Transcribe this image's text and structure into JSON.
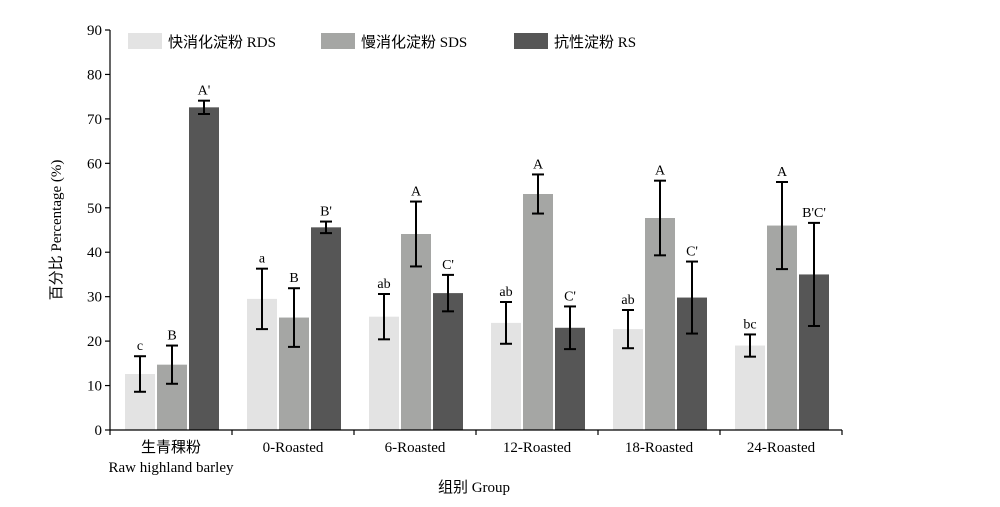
{
  "chart_data": {
    "type": "bar",
    "xlabel": "组别 Group",
    "ylabel": "百分比 Percentage (%)",
    "ylim": [
      0,
      90
    ],
    "yticks": [
      "0",
      "10",
      "20",
      "30",
      "40",
      "50",
      "60",
      "70",
      "80",
      "90"
    ],
    "categories": [
      [
        "生青稞粉",
        "Raw highland barley"
      ],
      [
        "0-Roasted"
      ],
      [
        "6-Roasted"
      ],
      [
        "12-Roasted"
      ],
      [
        "18-Roasted"
      ],
      [
        "24-Roasted"
      ]
    ],
    "legend_position": "top-left",
    "grid": false,
    "series": [
      {
        "name": "快消化淀粉 RDS",
        "color": "#e3e3e3",
        "values": [
          12.6,
          29.5,
          25.5,
          24.1,
          22.7,
          19.0
        ],
        "errors": [
          4.0,
          6.8,
          5.1,
          4.7,
          4.3,
          2.5
        ],
        "labels": [
          "c",
          "a",
          "ab",
          "ab",
          "ab",
          "bc"
        ]
      },
      {
        "name": "慢消化淀粉 SDS",
        "color": "#a5a6a4",
        "values": [
          14.7,
          25.3,
          44.1,
          53.1,
          47.7,
          46.0
        ],
        "errors": [
          4.3,
          6.6,
          7.3,
          4.4,
          8.4,
          9.8
        ],
        "labels": [
          "B",
          "B",
          "A",
          "A",
          "A",
          "A"
        ]
      },
      {
        "name": "抗性淀粉 RS",
        "color": "#565656",
        "values": [
          72.6,
          45.6,
          30.8,
          23.0,
          29.8,
          35.0
        ],
        "errors": [
          1.5,
          1.3,
          4.1,
          4.8,
          8.1,
          11.6
        ],
        "labels": [
          "A'",
          "B'",
          "C'",
          "C'",
          "C'",
          "B'C'"
        ]
      }
    ]
  }
}
